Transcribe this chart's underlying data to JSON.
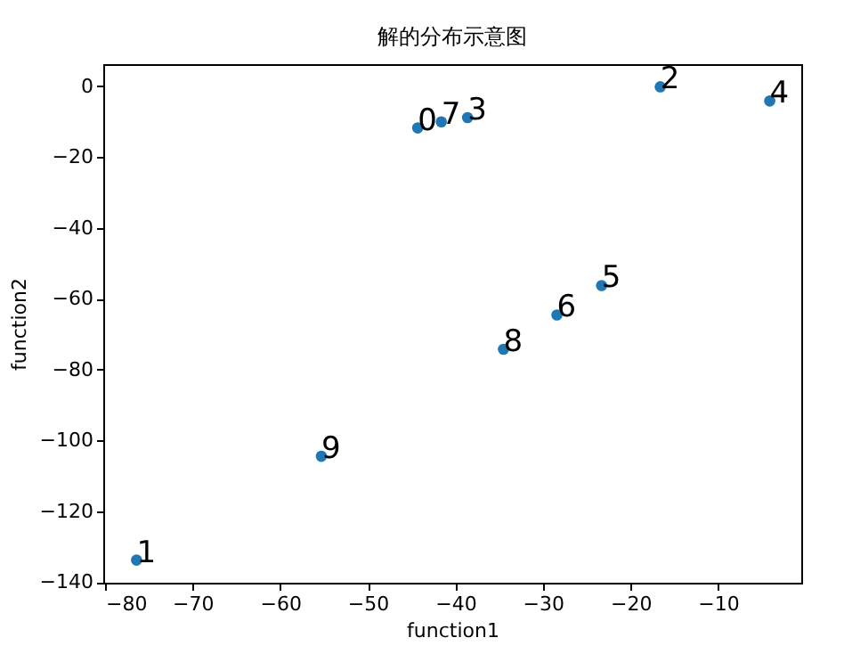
{
  "chart_data": {
    "type": "scatter",
    "title": "解的分布示意图",
    "xlabel": "function1",
    "ylabel": "function2",
    "x": [
      -44.3,
      -76.4,
      -16.6,
      -38.6,
      -4.1,
      -23.3,
      -28.4,
      -41.6,
      -34.5,
      -55.3
    ],
    "series": [
      {
        "color": "#1f77b4",
        "values": [
          -11.8,
          -133.8,
          -0.2,
          -8.9,
          -4.2,
          -56.3,
          -64.6,
          -10.1,
          -74.3,
          -104.5
        ]
      }
    ],
    "annotations": [
      {
        "text": "0",
        "x": -44.3,
        "y": -11.8
      },
      {
        "text": "1",
        "x": -76.4,
        "y": -133.8
      },
      {
        "text": "2",
        "x": -16.6,
        "y": -0.2
      },
      {
        "text": "3",
        "x": -38.6,
        "y": -8.9
      },
      {
        "text": "4",
        "x": -4.1,
        "y": -4.2
      },
      {
        "text": "5",
        "x": -23.3,
        "y": -56.3
      },
      {
        "text": "6",
        "x": -28.4,
        "y": -64.6
      },
      {
        "text": "7",
        "x": -41.6,
        "y": -10.1
      },
      {
        "text": "8",
        "x": -34.5,
        "y": -74.3
      },
      {
        "text": "9",
        "x": -55.3,
        "y": -104.5
      }
    ],
    "xlim": [
      -80.2,
      -0.5
    ],
    "ylim": [
      -140.2,
      6.2
    ],
    "xticks": [
      -80,
      -70,
      -60,
      -50,
      -40,
      -30,
      -20,
      -10
    ],
    "yticks": [
      0,
      -20,
      -40,
      -60,
      -80,
      -100,
      -120,
      -140
    ],
    "grid": false,
    "legend": false,
    "marker": "circle"
  }
}
